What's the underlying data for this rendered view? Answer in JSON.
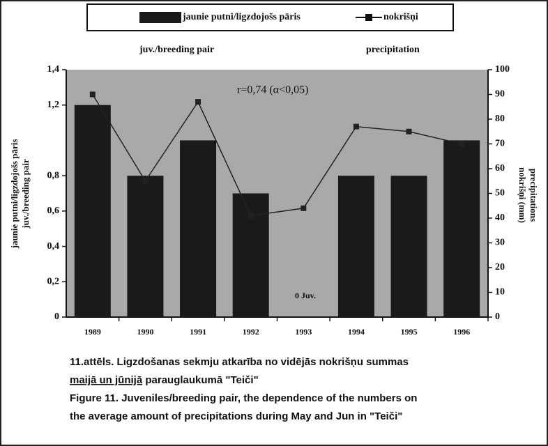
{
  "chart_data": {
    "type": "bar_line",
    "categories": [
      "1989",
      "1990",
      "1991",
      "1992",
      "1993",
      "1994",
      "1995",
      "1996"
    ],
    "series": [
      {
        "name": "jaunie putni/ligzdojošs pāris",
        "color": "#1a1a1a",
        "values": [
          1.2,
          0.8,
          1.0,
          0.7,
          0,
          0.8,
          0.8,
          1.0
        ]
      },
      {
        "name": "nokrišņi",
        "color": "#222222",
        "axis": "y2",
        "values": [
          90,
          55,
          87,
          41,
          44,
          77,
          75,
          70
        ]
      }
    ],
    "legend_subtitles": [
      "juv./breeding pair",
      "precipitation"
    ],
    "ylabel_lines": [
      "jaunie putni/ligzdojošs pāris",
      "juv./breeding pair"
    ],
    "y2label_lines": [
      "nokrišņi (mm)",
      "precipitations"
    ],
    "annotations": [
      "r=0,74 (α<0,05)",
      "0 Juv."
    ],
    "ylim": [
      0,
      1.4
    ],
    "yticks": [
      0,
      {
        "value": 0.2,
        "label": "0,2"
      },
      {
        "value": 0.4,
        "label": "0,4"
      },
      {
        "value": 0.6,
        "label": "0,6"
      },
      {
        "value": 0.8,
        "label": "0,8"
      },
      {
        "value": 1.2,
        "label": "1,2"
      },
      {
        "value": 1.4,
        "label": "1,4"
      }
    ],
    "y2lim": [
      0,
      100
    ],
    "y2ticks": [
      0,
      10,
      20,
      30,
      40,
      50,
      60,
      70,
      80,
      90,
      100
    ],
    "caption": {
      "line1": "11.attēls. Ligzdošanas sekmju atkarība no vidējās nokrišņu summas",
      "line2_underlined": "maijā un jūnijā",
      "line2_rest": " parauglaukumā \"Teiči\"",
      "line3": "Figure 11. Juveniles/breeding pair, the dependence of the numbers on",
      "line4": "the average amount of precipitations during May and Jun in \"Teiči\""
    }
  }
}
